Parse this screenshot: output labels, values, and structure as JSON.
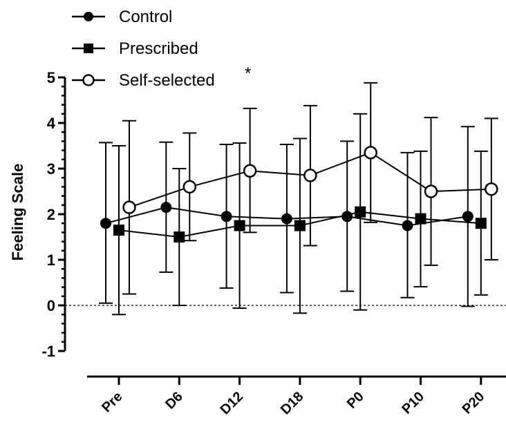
{
  "chart_data": {
    "type": "line",
    "categories": [
      "Pre",
      "D6",
      "D12",
      "D18",
      "P0",
      "P10",
      "P20"
    ],
    "ylabel": "Feeling Scale",
    "xlabel": "",
    "ylim": [
      -1,
      5
    ],
    "yticks": [
      "-1",
      "0",
      "1",
      "2",
      "3",
      "4",
      "5"
    ],
    "reference_line": {
      "y": 0,
      "style": "dotted"
    },
    "grid": false,
    "legend_position": "top-left",
    "significance_marker": "*",
    "series": [
      {
        "name": "Control",
        "marker": "filled-circle",
        "values": [
          1.8,
          2.15,
          1.95,
          1.9,
          1.95,
          1.75,
          1.95
        ],
        "error_high": [
          3.57,
          3.58,
          3.53,
          3.53,
          3.6,
          3.35,
          3.92
        ],
        "error_low": [
          0.05,
          0.73,
          0.38,
          0.28,
          0.31,
          0.17,
          -0.02
        ]
      },
      {
        "name": "Prescribed",
        "marker": "filled-square",
        "values": [
          1.65,
          1.5,
          1.75,
          1.75,
          2.05,
          1.9,
          1.8
        ],
        "error_high": [
          3.5,
          3.0,
          3.56,
          3.66,
          4.2,
          3.38,
          3.38
        ],
        "error_low": [
          -0.2,
          0.0,
          -0.06,
          -0.17,
          -0.1,
          0.41,
          0.23
        ]
      },
      {
        "name": "Self-selected",
        "marker": "open-circle",
        "values": [
          2.15,
          2.6,
          2.95,
          2.85,
          3.35,
          2.5,
          2.55
        ],
        "error_high": [
          4.05,
          3.78,
          4.32,
          4.38,
          4.88,
          4.12,
          4.1
        ],
        "error_low": [
          0.25,
          1.42,
          1.6,
          1.31,
          1.82,
          0.88,
          1.0
        ]
      }
    ]
  },
  "colors": {
    "ink": "#000000",
    "background": "#ffffff",
    "open_marker_fill": "#ffffff"
  }
}
